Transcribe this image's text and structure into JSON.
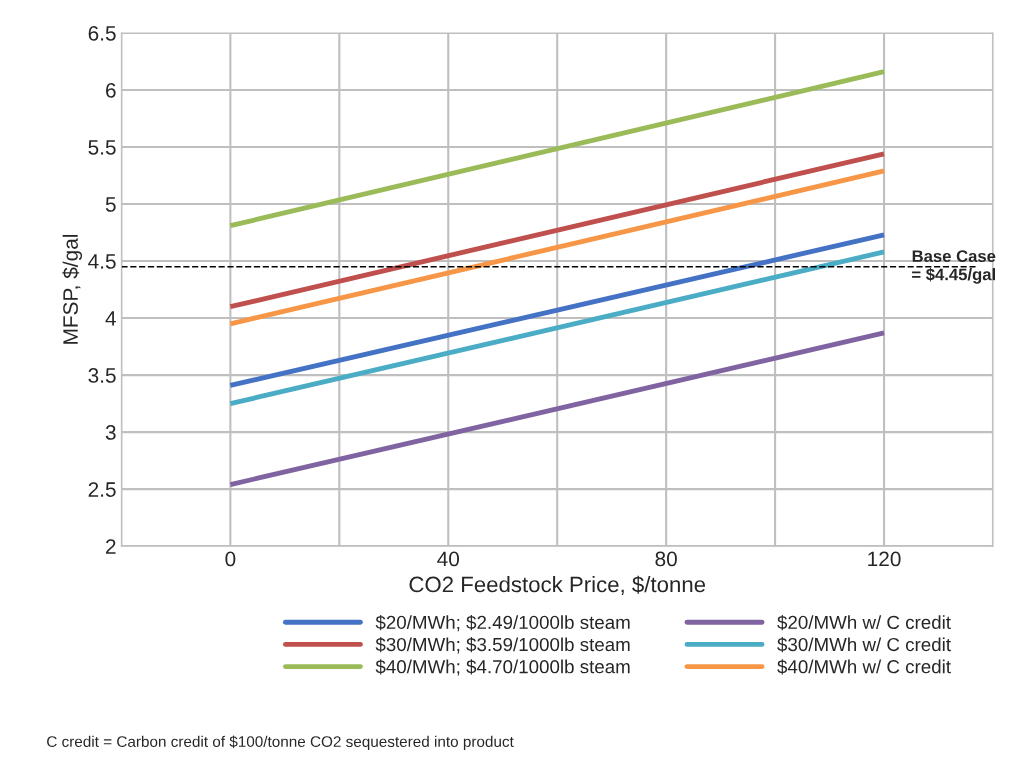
{
  "chart_data": {
    "type": "line",
    "xlabel": "CO2 Feedstock Price, $/tonne",
    "ylabel": "MFSP, $/gal",
    "x": [
      0,
      120
    ],
    "series": [
      {
        "name": "$20/MWh; $2.49/1000lb steam",
        "color": "#4472c4",
        "values": [
          3.41,
          4.73
        ]
      },
      {
        "name": "$30/MWh; $3.59/1000lb steam",
        "color": "#c0504d",
        "values": [
          4.1,
          5.44
        ]
      },
      {
        "name": "$40/MWh; $4.70/1000lb steam",
        "color": "#9bbb59",
        "values": [
          4.81,
          6.16
        ]
      },
      {
        "name": "$20/MWh w/ C credit",
        "color": "#8064a2",
        "values": [
          2.54,
          3.87
        ]
      },
      {
        "name": "$30/MWh w/ C credit",
        "color": "#4bacc6",
        "values": [
          3.25,
          4.58
        ]
      },
      {
        "name": "$40/MWh w/ C credit",
        "color": "#f79646",
        "values": [
          3.95,
          5.29
        ]
      }
    ],
    "xlim": [
      -20,
      140
    ],
    "xticks": [
      {
        "value": -20,
        "label": null
      },
      0,
      {
        "value": 20,
        "label": null
      },
      40,
      {
        "value": 60,
        "label": null
      },
      80,
      {
        "value": 100,
        "label": null
      },
      120,
      {
        "value": 140,
        "label": null
      }
    ],
    "ylim": [
      2,
      6.5
    ],
    "yticks": [
      2,
      2.5,
      3,
      3.5,
      4,
      4.5,
      5,
      5.5,
      6,
      6.5
    ],
    "grid": true,
    "legend": "bottom",
    "marker": "none",
    "line_style": "solid",
    "ref_lines": [
      {
        "axis": "y",
        "value": 4.45,
        "label": "Base Case\n= $4.45/gal",
        "color": "#000000",
        "line_style": "dashed"
      }
    ],
    "annotations": [
      "C credit = Carbon credit of $100/tonne CO2 sequestered into product"
    ]
  }
}
